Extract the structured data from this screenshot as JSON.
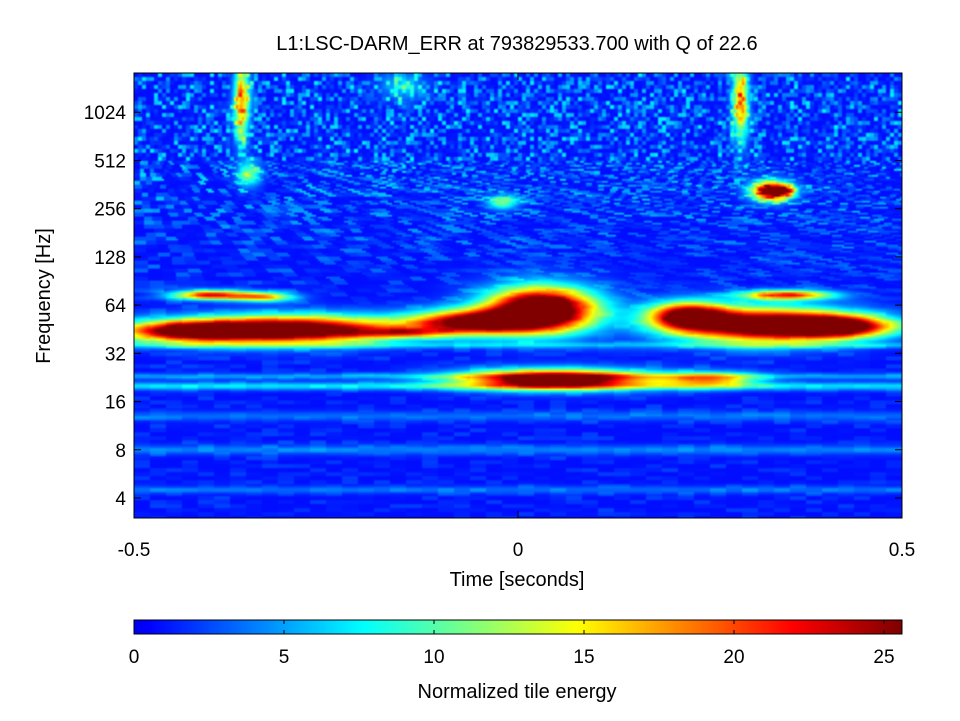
{
  "chart_data": [
    {
      "type": "heatmap",
      "title": "L1:LSC-DARM_ERR at 793829533.700 with Q of 22.6",
      "xlabel": "Time [seconds]",
      "ylabel": "Frequency [Hz]",
      "xlim": [
        -0.5,
        0.5
      ],
      "ylim": [
        3,
        1800
      ],
      "yscale": "log2",
      "x_ticks": [
        -0.5,
        0,
        0.5
      ],
      "x_tick_labels": [
        "-0.5",
        "0",
        "0.5"
      ],
      "y_ticks": [
        4,
        8,
        16,
        32,
        64,
        128,
        256,
        512,
        1024
      ],
      "y_tick_labels": [
        "4",
        "8",
        "16",
        "32",
        "64",
        "128",
        "256",
        "512",
        "1024"
      ],
      "colormap": "jet",
      "clim": [
        0,
        25.6
      ],
      "grid": false,
      "features": [
        {
          "t": -0.29,
          "f": 45,
          "dt": 0.13,
          "df": 0.28,
          "e": 30
        },
        {
          "t": -0.43,
          "f": 44,
          "dt": 0.09,
          "df": 0.22,
          "e": 24
        },
        {
          "t": -0.4,
          "f": 74,
          "dt": 0.05,
          "df": 0.1,
          "e": 21
        },
        {
          "t": -0.33,
          "f": 72,
          "dt": 0.04,
          "df": 0.1,
          "e": 15
        },
        {
          "t": 0.03,
          "f": 60,
          "dt": 0.07,
          "df": 0.45,
          "e": 34
        },
        {
          "t": -0.06,
          "f": 50,
          "dt": 0.08,
          "df": 0.25,
          "e": 26
        },
        {
          "t": 0.32,
          "f": 48,
          "dt": 0.11,
          "df": 0.35,
          "e": 30
        },
        {
          "t": 0.42,
          "f": 47,
          "dt": 0.07,
          "df": 0.22,
          "e": 24
        },
        {
          "t": 0.22,
          "f": 55,
          "dt": 0.05,
          "df": 0.28,
          "e": 24
        },
        {
          "t": 0.35,
          "f": 74,
          "dt": 0.06,
          "df": 0.1,
          "e": 20
        },
        {
          "t": 0.05,
          "f": 22,
          "dt": 0.12,
          "df": 0.2,
          "e": 30
        },
        {
          "t": 0.25,
          "f": 22,
          "dt": 0.06,
          "df": 0.15,
          "e": 15
        },
        {
          "t": -0.15,
          "f": 43,
          "dt": 0.06,
          "df": 0.1,
          "e": 11
        },
        {
          "t": 0.33,
          "f": 330,
          "dt": 0.025,
          "df": 0.2,
          "e": 28
        },
        {
          "t": 0.35,
          "f": 330,
          "dt": 0.012,
          "df": 0.1,
          "e": 10
        },
        {
          "t": -0.36,
          "f": 1200,
          "dt": 0.01,
          "df": 0.8,
          "e": 16
        },
        {
          "t": 0.29,
          "f": 1200,
          "dt": 0.01,
          "df": 0.8,
          "e": 16
        },
        {
          "t": -0.35,
          "f": 420,
          "dt": 0.015,
          "df": 0.25,
          "e": 10
        },
        {
          "t": -0.02,
          "f": 280,
          "dt": 0.02,
          "df": 0.15,
          "e": 10
        },
        {
          "t": -0.15,
          "f": 1500,
          "dt": 0.03,
          "df": 0.3,
          "e": 5
        }
      ],
      "bands": [
        {
          "f": 20,
          "df": 0.08,
          "e": 6
        },
        {
          "f": 23,
          "df": 0.06,
          "e": 4
        },
        {
          "f": 36,
          "df": 0.06,
          "e": 4
        },
        {
          "f": 13,
          "df": 0.1,
          "e": 2.5
        },
        {
          "f": 8,
          "df": 0.1,
          "e": 3
        },
        {
          "f": 4.5,
          "df": 0.08,
          "e": 2.5
        }
      ]
    },
    {
      "type": "colorbar",
      "label": "Normalized tile energy",
      "range": [
        0,
        25.6
      ],
      "ticks": [
        0,
        5,
        10,
        15,
        20,
        25
      ],
      "tick_labels": [
        "0",
        "5",
        "10",
        "15",
        "20",
        "25"
      ]
    }
  ]
}
